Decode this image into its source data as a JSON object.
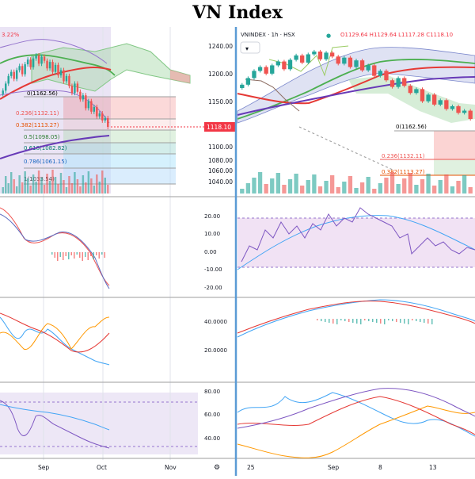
{
  "page": {
    "title": "VN Index"
  },
  "colors": {
    "up": "#26a69a",
    "down": "#ef5350",
    "ema_fast": "#4caf50",
    "ema_slow": "#e53935",
    "ema_long": "#673ab7",
    "cloud_green": "#a5d6a7",
    "cloud_red": "#ef9a9a",
    "band_purple": "#9575cd",
    "price_label": "#f23645",
    "blue_line": "#42a5f5",
    "orange_line": "#ff9800",
    "divider": "#5b9bd5",
    "osc_band": "#e1bee7"
  },
  "toolbar": {
    "symbol": "VNINDEX · 1h · HSX",
    "status_icon": "●",
    "ohlc": "O1129.64 H1129.64 L1117.28 C1118.10",
    "settings_icon": "⚙",
    "expand_label": "▾"
  },
  "left_legend": {
    "change_label": "3.22%"
  },
  "price_axis": {
    "ticks": [
      "1240.00",
      "1200.00",
      "1150.00",
      "1100.00",
      "1080.00",
      "1060.00",
      "1040.00"
    ],
    "current_price": "1118.10"
  },
  "fib_left": [
    {
      "label": "0(1162.56)"
    },
    {
      "label": "0.236(1132.11)"
    },
    {
      "label": "0.382(1113.27)"
    },
    {
      "label": "0.5(1098.05)"
    },
    {
      "label": "0.618(1082.82)"
    },
    {
      "label": "0.786(1061.15)"
    },
    {
      "label": "1(1033.54)"
    }
  ],
  "fib_right": [
    {
      "label": "0(1162.56)"
    },
    {
      "label": "0.236(1132.11)"
    },
    {
      "label": "0.382(1113.27)"
    }
  ],
  "osc1_axis": [
    "20.00",
    "10.00",
    "0.00",
    "-10.00",
    "-20.00"
  ],
  "osc2_axis": [
    "40.0000",
    "20.0000"
  ],
  "osc3_axis": [
    "80.00",
    "60.00",
    "40.00"
  ],
  "x_axis_left": [
    "Sep",
    "Oct",
    "Nov"
  ],
  "x_axis_right": [
    "25",
    "Sep",
    "8",
    "13"
  ],
  "chart_data": {
    "type": "line",
    "title": "VN Index",
    "series": [
      {
        "values": [
          1180,
          1192,
          1205,
          1212,
          1200,
          1215,
          1222,
          1208,
          1225,
          1233,
          1220,
          1235,
          1240,
          1226,
          1238,
          1231,
          1218,
          1229,
          1212,
          1224,
          1206,
          1215,
          1196,
          1205,
          1188,
          1176,
          1192,
          1178,
          1165,
          1172,
          1150,
          1162,
          1144,
          1152,
          1136,
          1141,
          1129,
          1133,
          1118
        ]
      }
    ]
  }
}
